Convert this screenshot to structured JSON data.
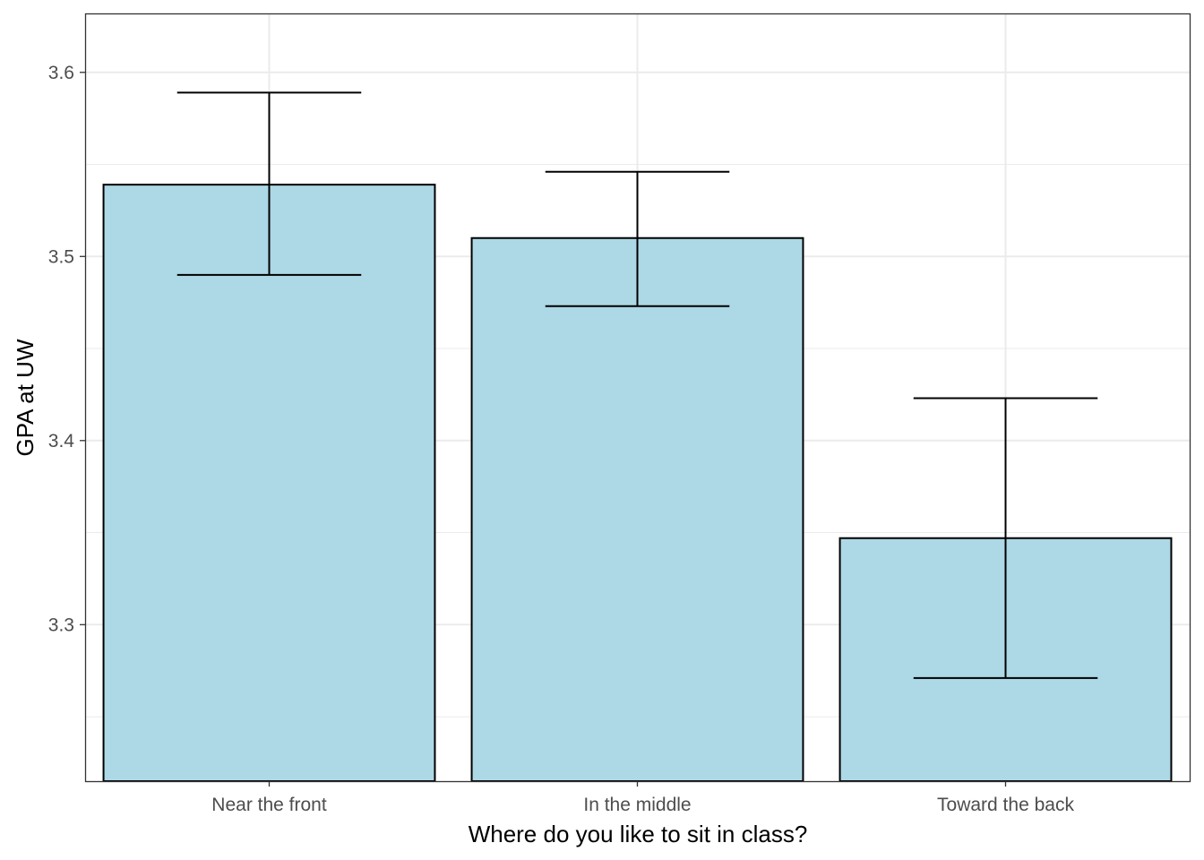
{
  "chart_data": {
    "type": "bar",
    "title": "",
    "xlabel": "Where do you like to sit in class?",
    "ylabel": "GPA at UW",
    "categories": [
      "Near the front",
      "In the middle",
      "Toward the back"
    ],
    "values": [
      3.539,
      3.51,
      3.347
    ],
    "error_low": [
      3.49,
      3.473,
      3.271
    ],
    "error_high": [
      3.589,
      3.546,
      3.423
    ],
    "ylim": [
      3.215,
      3.632
    ],
    "yticks": [
      3.3,
      3.4,
      3.5,
      3.6
    ],
    "ytick_labels": [
      "3.3",
      "3.4",
      "3.5",
      "3.6"
    ],
    "grid": true,
    "colors": {
      "bar_fill": "#ADD8E6",
      "bar_stroke": "#000000",
      "grid": "#EBEBEB"
    }
  }
}
